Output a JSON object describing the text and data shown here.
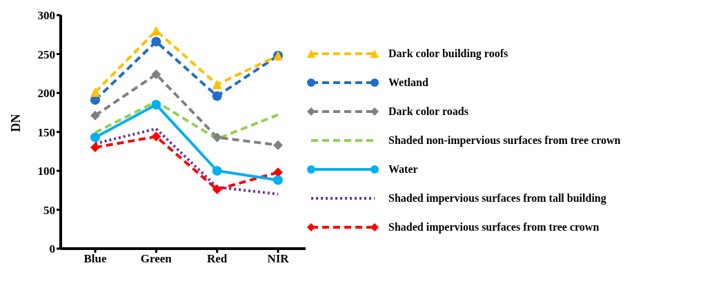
{
  "chart_data": {
    "type": "line",
    "ylabel": "DN",
    "categories": [
      "Blue",
      "Green",
      "Red",
      "NIR"
    ],
    "ylim": [
      0,
      300
    ],
    "yticks": [
      0,
      50,
      100,
      150,
      200,
      250,
      300
    ],
    "grid": false,
    "legend": "right",
    "series": [
      {
        "name": "Dark color building roofs",
        "color": "#ffc000",
        "marker": "triangle",
        "line_style": "dashed",
        "values": [
          201,
          280,
          211,
          248
        ]
      },
      {
        "name": "Wetland",
        "color": "#1f6fc5",
        "marker": "circle",
        "line_style": "dashed",
        "values": [
          191,
          266,
          196,
          248
        ]
      },
      {
        "name": "Dark color roads",
        "color": "#808080",
        "marker": "diamond",
        "line_style": "dashed",
        "values": [
          171,
          224,
          143,
          133
        ]
      },
      {
        "name": "Shaded non-impervious surfaces from tree crown",
        "color": "#92d050",
        "marker": "none",
        "line_style": "dashed",
        "values": [
          149,
          189,
          141,
          172
        ]
      },
      {
        "name": "Water",
        "color": "#00b0f0",
        "marker": "circle",
        "line_style": "solid",
        "values": [
          143,
          185,
          100,
          88
        ]
      },
      {
        "name": "Shaded impervious surfaces from tall building",
        "color": "#7030a0",
        "marker": "none",
        "line_style": "dotted",
        "values": [
          135,
          154,
          79,
          70
        ]
      },
      {
        "name": "Shaded impervious surfaces from tree crown",
        "color": "#ff0000",
        "marker": "diamond",
        "line_style": "dashed",
        "values": [
          130,
          144,
          76,
          98
        ]
      }
    ]
  }
}
